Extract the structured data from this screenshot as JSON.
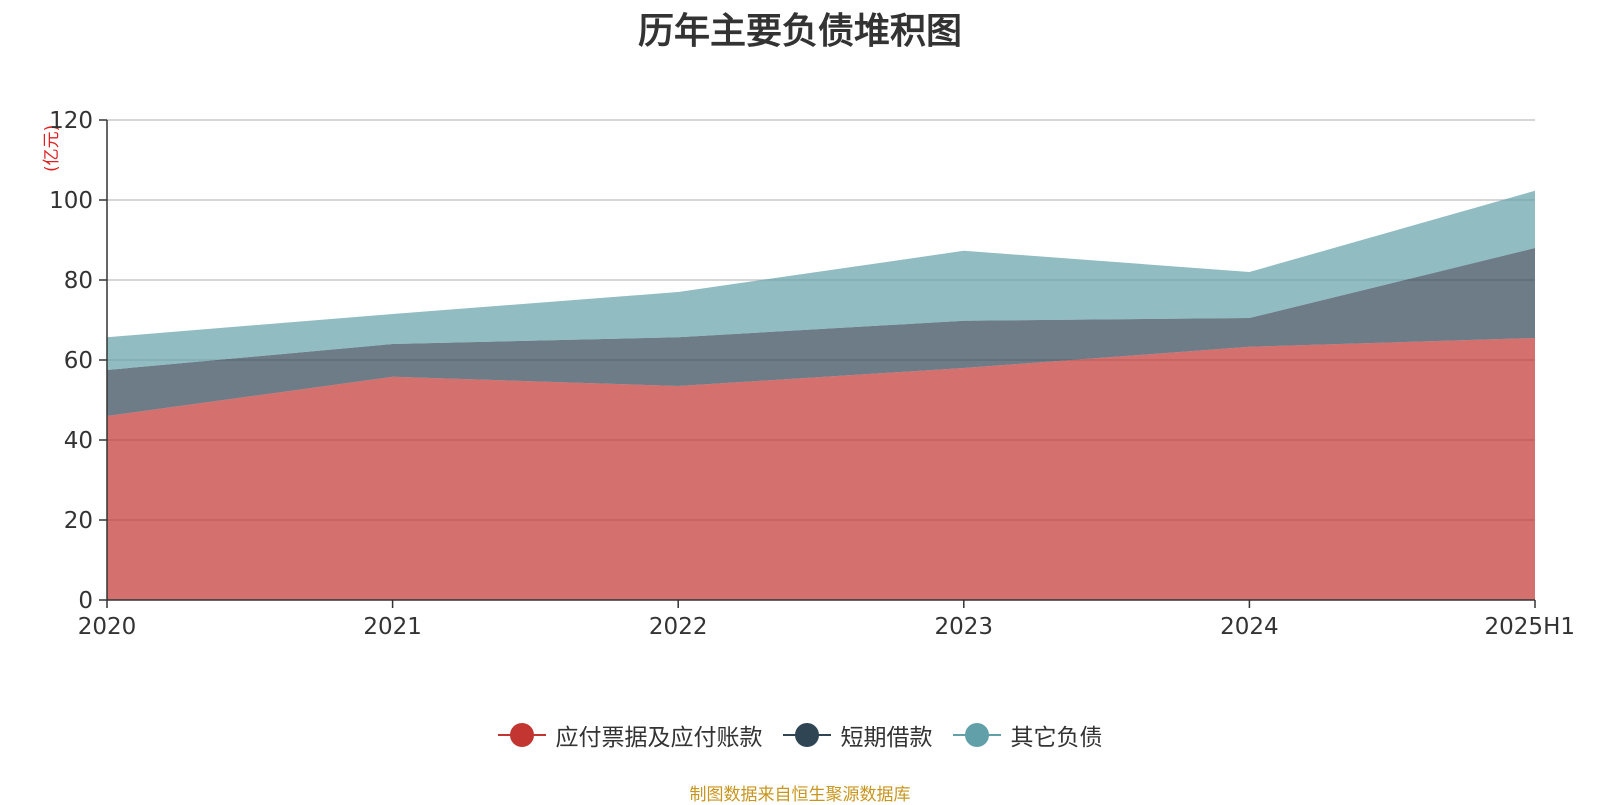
{
  "chart_data": {
    "type": "area",
    "stacked": true,
    "title": "历年主要负债堆积图",
    "unit_label": "(亿元)",
    "categories": [
      "2020",
      "2021",
      "2022",
      "2023",
      "2024",
      "2025H1"
    ],
    "ylim": [
      0,
      120
    ],
    "yticks": [
      "0",
      "20",
      "40",
      "60",
      "80",
      "100",
      "120"
    ],
    "grid": true,
    "legend_position": "bottom",
    "series": [
      {
        "name": "应付票据及应付账款",
        "color": "#c23531",
        "values": [
          46,
          55.8,
          53.5,
          58,
          63.3,
          65.5
        ]
      },
      {
        "name": "短期借款",
        "color": "#2f4554",
        "values": [
          11.5,
          8.2,
          12.2,
          11.8,
          7.2,
          22.5
        ]
      },
      {
        "name": "其它负债",
        "color": "#61a0a8",
        "values": [
          8.2,
          7.5,
          11.3,
          17.5,
          11.5,
          14.3
        ]
      }
    ]
  },
  "legend": {
    "items": [
      {
        "label": "应付票据及应付账款",
        "color": "#c23531"
      },
      {
        "label": "短期借款",
        "color": "#2f4554"
      },
      {
        "label": "其它负债",
        "color": "#61a0a8"
      }
    ]
  },
  "source_text": "制图数据来自恒生聚源数据库"
}
